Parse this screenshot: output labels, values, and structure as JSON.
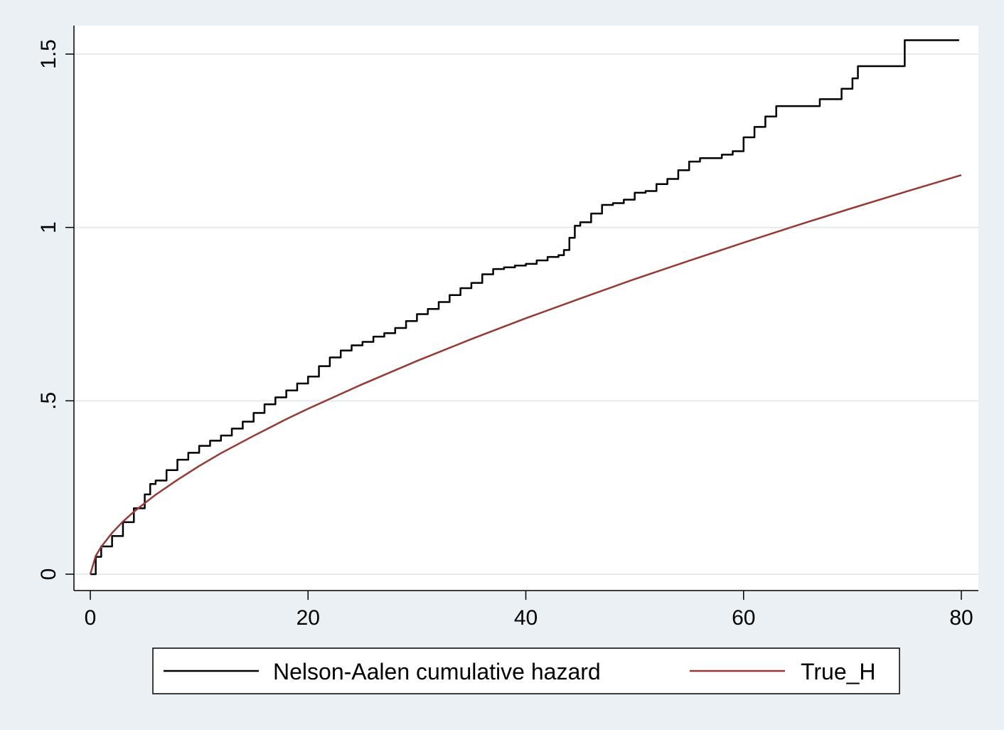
{
  "chart_data": {
    "type": "line",
    "title": "",
    "xlabel": "",
    "ylabel": "",
    "xlim": [
      0,
      80
    ],
    "ylim": [
      0,
      1.5
    ],
    "x_ticks": [
      {
        "value": 0,
        "label": "0"
      },
      {
        "value": 20,
        "label": "20"
      },
      {
        "value": 40,
        "label": "40"
      },
      {
        "value": 60,
        "label": "60"
      },
      {
        "value": 80,
        "label": "80"
      }
    ],
    "y_ticks": [
      {
        "value": 0,
        "label": "0"
      },
      {
        "value": 0.5,
        "label": ".5"
      },
      {
        "value": 1,
        "label": "1"
      },
      {
        "value": 1.5,
        "label": "1.5"
      }
    ],
    "grid": "horizontal",
    "legend_position": "bottom",
    "colors": {
      "background": "#eaf0f3",
      "plot_area": "#ffffff",
      "grid": "#e3ebef",
      "nelson_aalen": "#000000",
      "true_h": "#953a35"
    },
    "series": [
      {
        "name": "Nelson-Aalen cumulative hazard",
        "key": "nelson_aalen",
        "step": true,
        "x": [
          0,
          0.5,
          1,
          2,
          3,
          4,
          5,
          5.5,
          6,
          7,
          8,
          9,
          10,
          11,
          12,
          13,
          14,
          15,
          16,
          17,
          18,
          19,
          20,
          21,
          22,
          23,
          24,
          25,
          26,
          27,
          28,
          29,
          30,
          31,
          32,
          33,
          34,
          35,
          36,
          37,
          38,
          39,
          40,
          41,
          42,
          43,
          43.5,
          44,
          44.5,
          45,
          46,
          47,
          48,
          49,
          50,
          51,
          52,
          53,
          54,
          55,
          56,
          57,
          58,
          59,
          60,
          61,
          62,
          63,
          64,
          65,
          66,
          67,
          68,
          69,
          70,
          70.5,
          71,
          72,
          73,
          74,
          74.8,
          75,
          76,
          77,
          78,
          79,
          79.8
        ],
        "y": [
          0,
          0.05,
          0.08,
          0.11,
          0.15,
          0.19,
          0.23,
          0.26,
          0.27,
          0.3,
          0.33,
          0.35,
          0.37,
          0.385,
          0.4,
          0.42,
          0.44,
          0.465,
          0.49,
          0.51,
          0.53,
          0.55,
          0.57,
          0.6,
          0.625,
          0.645,
          0.66,
          0.67,
          0.685,
          0.695,
          0.71,
          0.73,
          0.75,
          0.765,
          0.785,
          0.805,
          0.825,
          0.84,
          0.865,
          0.88,
          0.885,
          0.89,
          0.895,
          0.905,
          0.915,
          0.92,
          0.935,
          0.97,
          1.005,
          1.015,
          1.04,
          1.065,
          1.07,
          1.08,
          1.1,
          1.105,
          1.125,
          1.14,
          1.165,
          1.19,
          1.2,
          1.2,
          1.21,
          1.22,
          1.26,
          1.29,
          1.32,
          1.35,
          1.35,
          1.35,
          1.35,
          1.37,
          1.37,
          1.4,
          1.43,
          1.465,
          1.465,
          1.465,
          1.465,
          1.465,
          1.54,
          1.54,
          1.54,
          1.54,
          1.54,
          1.54,
          1.54
        ]
      },
      {
        "name": "True_H",
        "key": "true_h",
        "step": false,
        "x": [
          0,
          0.5,
          1,
          2,
          3,
          4,
          5,
          6,
          8,
          10,
          12,
          15,
          18,
          20,
          25,
          30,
          35,
          40,
          45,
          50,
          55,
          60,
          65,
          70,
          75,
          80
        ],
        "y": [
          0,
          0.053,
          0.079,
          0.119,
          0.152,
          0.18,
          0.205,
          0.229,
          0.272,
          0.312,
          0.349,
          0.399,
          0.447,
          0.477,
          0.548,
          0.615,
          0.678,
          0.738,
          0.795,
          0.851,
          0.904,
          0.956,
          1.007,
          1.056,
          1.104,
          1.151
        ]
      }
    ]
  }
}
